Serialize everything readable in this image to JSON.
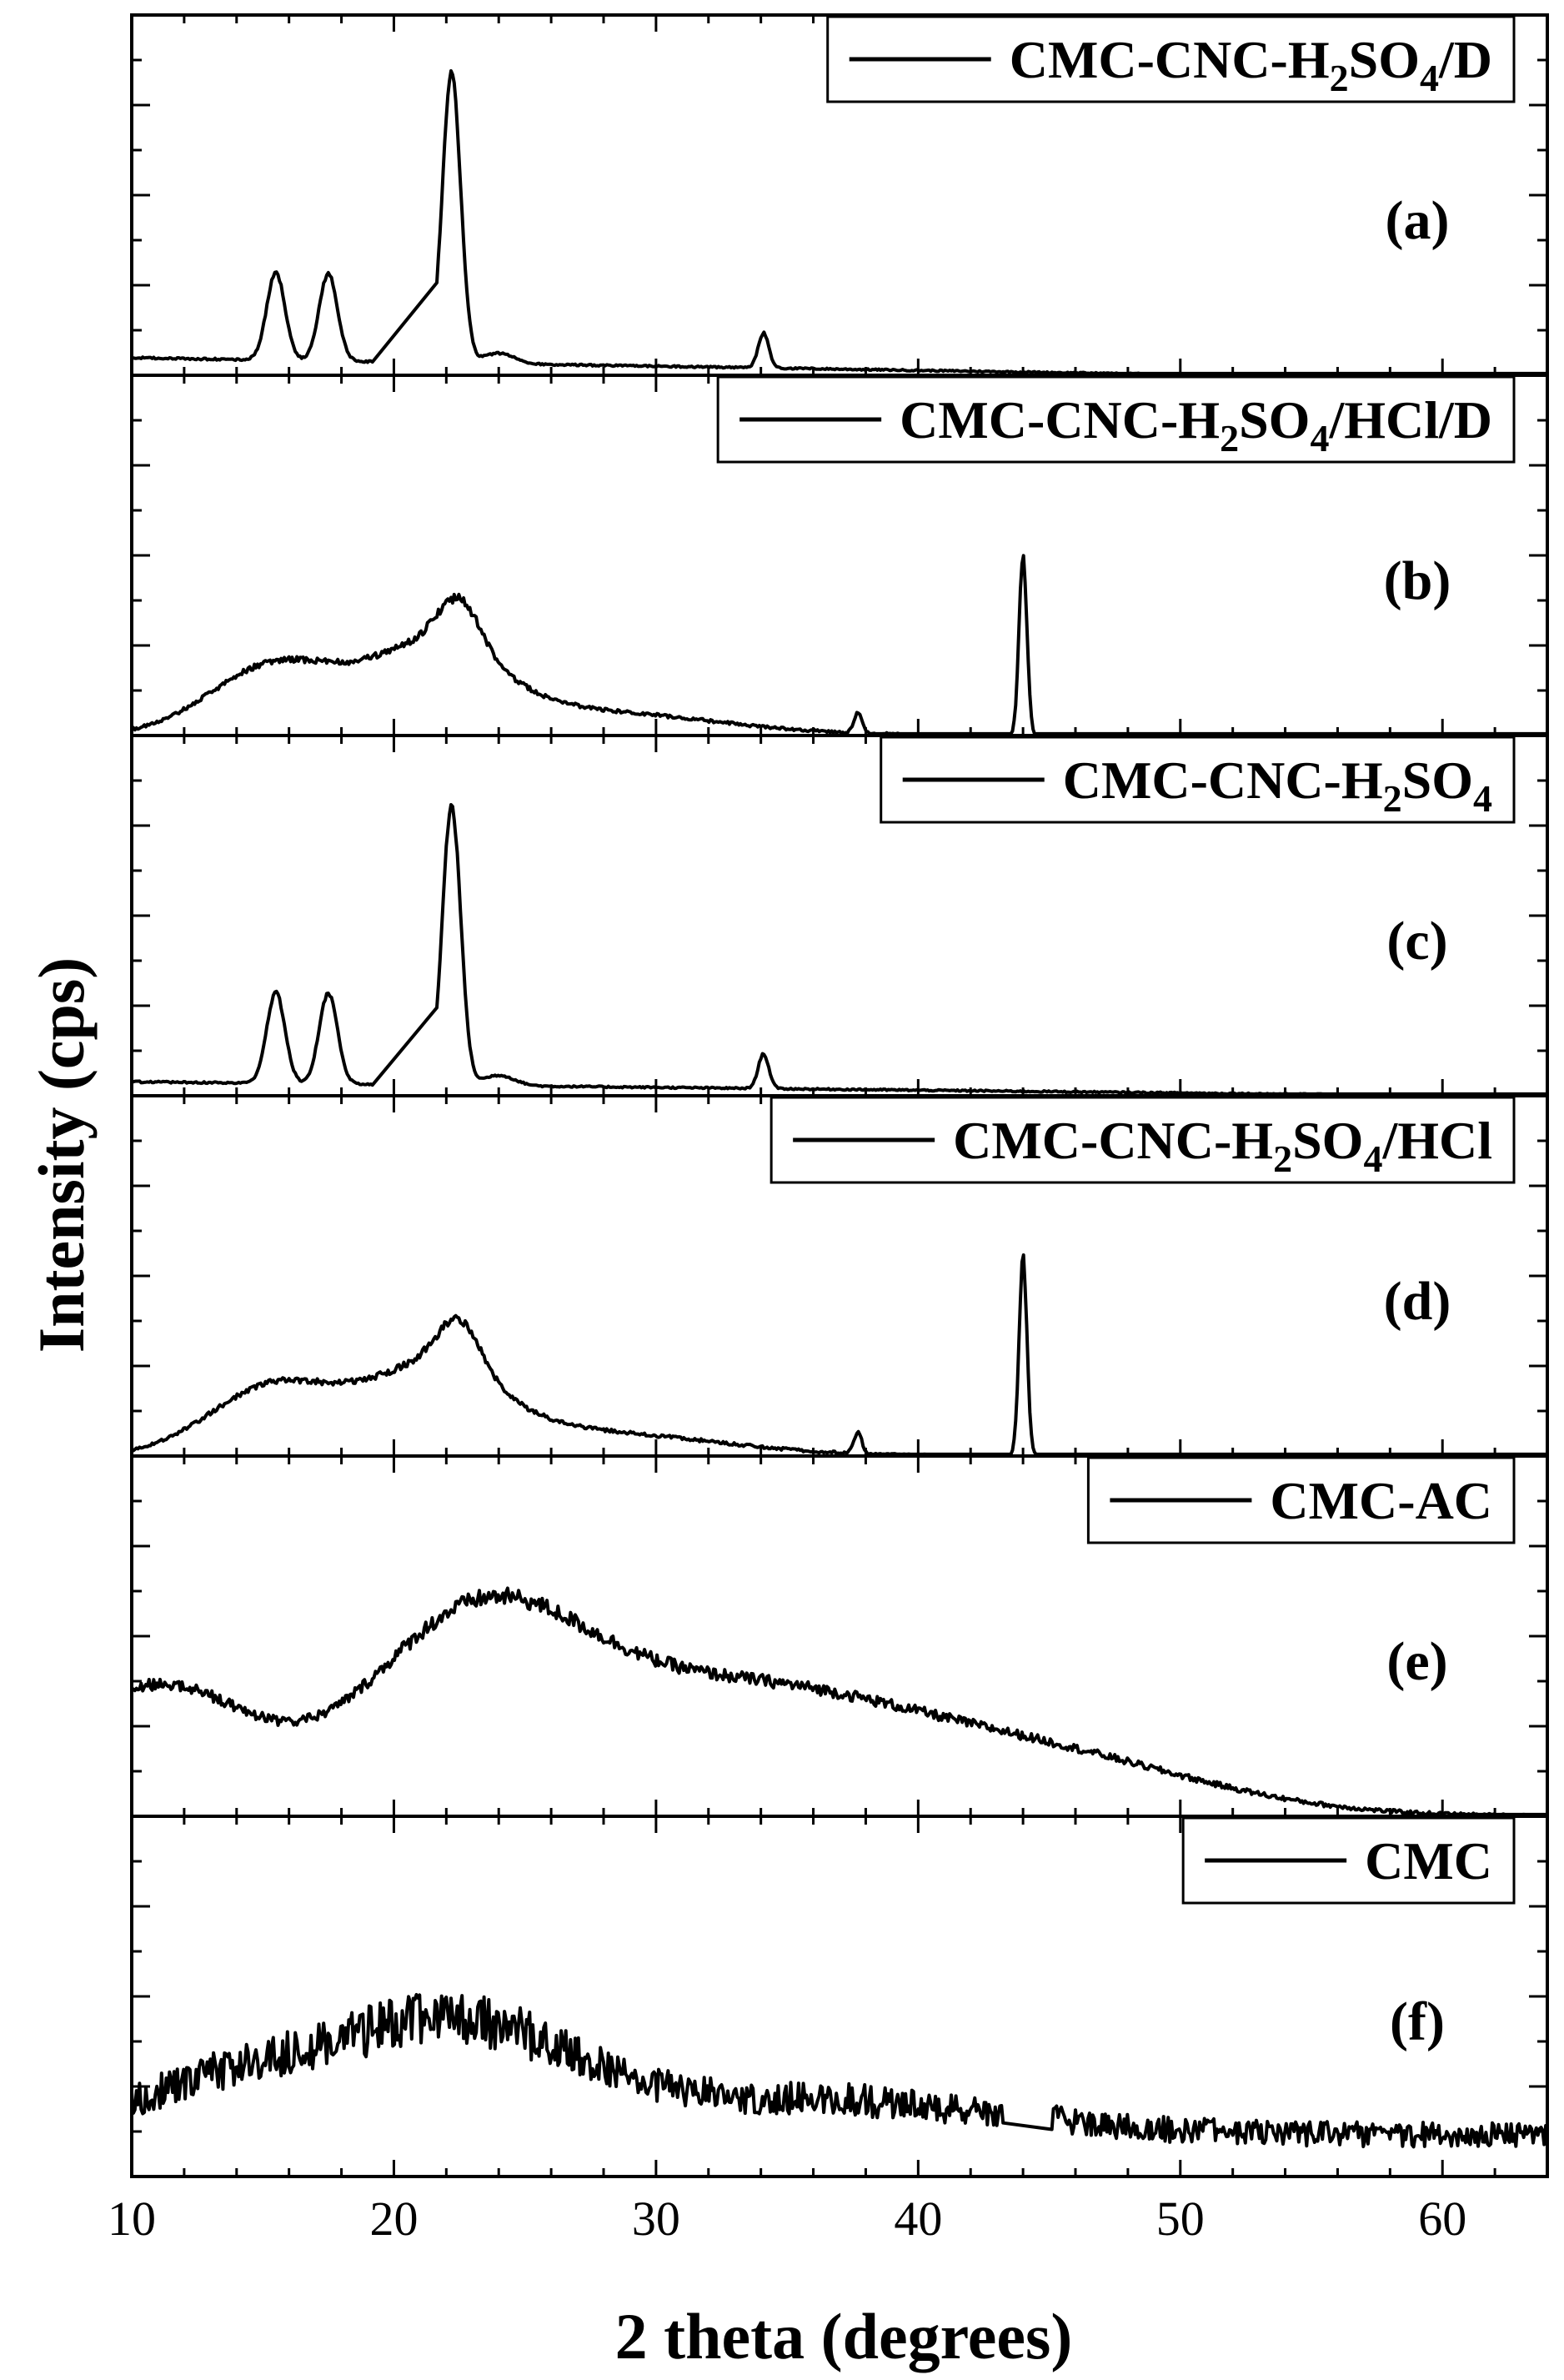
{
  "figure": {
    "xlabel": "2 theta (degrees)",
    "ylabel": "Intensity (cps)"
  },
  "chart_data": {
    "type": "line",
    "layout": "stacked-panels",
    "xlim": [
      10,
      64
    ],
    "xticks": [
      10,
      20,
      30,
      40,
      50,
      60
    ],
    "xlabel": "2 theta (degrees)",
    "ylabel": "Intensity (cps)",
    "y_tick_labels": false,
    "legend_placement": "top-right",
    "panels": [
      {
        "id": "a",
        "label": "(a)",
        "legend_parts": [
          {
            "t": "CMC-CNC-H",
            "sub": false
          },
          {
            "t": "2",
            "sub": true
          },
          {
            "t": "SO",
            "sub": false
          },
          {
            "t": "4",
            "sub": true
          },
          {
            "t": "/D",
            "sub": false
          }
        ],
        "baseline": 0.05,
        "slope": -0.012,
        "noise": 0.008,
        "peaks": [
          [
            15.5,
            0.25,
            0.35
          ],
          [
            17.5,
            0.25,
            0.35
          ],
          [
            22.2,
            0.83,
            0.35
          ],
          [
            24,
            0.03,
            0.6
          ],
          [
            34.1,
            0.1,
            0.2
          ]
        ],
        "humps": [],
        "gap": [
          19.2,
          21.6
        ]
      },
      {
        "id": "b",
        "label": "(b)",
        "legend_parts": [
          {
            "t": "CMC-CNC-H",
            "sub": false
          },
          {
            "t": "2",
            "sub": true
          },
          {
            "t": "SO",
            "sub": false
          },
          {
            "t": "4",
            "sub": true
          },
          {
            "t": "/HCl/D",
            "sub": false
          }
        ],
        "baseline": 0.0,
        "slope": 0.0,
        "noise": 0.014,
        "peaks": [
          [
            22.5,
            0.14,
            0.8
          ],
          [
            37.7,
            0.06,
            0.15
          ],
          [
            44,
            0.52,
            0.15
          ]
        ],
        "humps": [
          [
            15.5,
            0.2,
            2.5
          ],
          [
            21.5,
            0.22,
            2.4
          ],
          [
            27,
            0.07,
            5
          ]
        ],
        "gap": null
      },
      {
        "id": "c",
        "label": "(c)",
        "legend_parts": [
          {
            "t": "CMC-CNC-H",
            "sub": false
          },
          {
            "t": "2",
            "sub": true
          },
          {
            "t": "SO",
            "sub": false
          },
          {
            "t": "4",
            "sub": true
          }
        ],
        "baseline": 0.04,
        "slope": -0.008,
        "noise": 0.008,
        "peaks": [
          [
            15.5,
            0.26,
            0.35
          ],
          [
            17.5,
            0.26,
            0.35
          ],
          [
            22.2,
            0.8,
            0.35
          ],
          [
            24,
            0.03,
            0.6
          ],
          [
            34.1,
            0.1,
            0.2
          ]
        ],
        "humps": [],
        "gap": [
          19.2,
          21.6
        ]
      },
      {
        "id": "d",
        "label": "(d)",
        "legend_parts": [
          {
            "t": "CMC-CNC-H",
            "sub": false
          },
          {
            "t": "2",
            "sub": true
          },
          {
            "t": "SO",
            "sub": false
          },
          {
            "t": "4",
            "sub": true
          },
          {
            "t": "/HCl",
            "sub": false
          }
        ],
        "baseline": 0.0,
        "slope": 0.0,
        "noise": 0.014,
        "peaks": [
          [
            22.5,
            0.14,
            0.8
          ],
          [
            37.7,
            0.06,
            0.15
          ],
          [
            44,
            0.57,
            0.15
          ]
        ],
        "humps": [
          [
            15.5,
            0.2,
            2.5
          ],
          [
            21.5,
            0.22,
            2.4
          ],
          [
            27,
            0.07,
            5
          ]
        ],
        "gap": null
      },
      {
        "id": "e",
        "label": "(e)",
        "legend_parts": [
          {
            "t": "CMC-AC",
            "sub": false
          }
        ],
        "baseline": 0.0,
        "slope": 0.0,
        "noise": 0.02,
        "peaks": [],
        "humps": [
          [
            11,
            0.37,
            3.5
          ],
          [
            23,
            0.51,
            4.2
          ],
          [
            33,
            0.35,
            6.5
          ],
          [
            45,
            0.15,
            6
          ]
        ],
        "gap": null
      },
      {
        "id": "f",
        "label": "(f)",
        "legend_parts": [
          {
            "t": "CMC",
            "sub": false
          }
        ],
        "baseline": 0.12,
        "slope": 0.0,
        "noise": 0.08,
        "peaks": [],
        "humps": [
          [
            14,
            0.15,
            4
          ],
          [
            22.5,
            0.3,
            4.5
          ],
          [
            36,
            0.1,
            7
          ]
        ],
        "gap": [
          43.3,
          45.1
        ]
      }
    ]
  }
}
